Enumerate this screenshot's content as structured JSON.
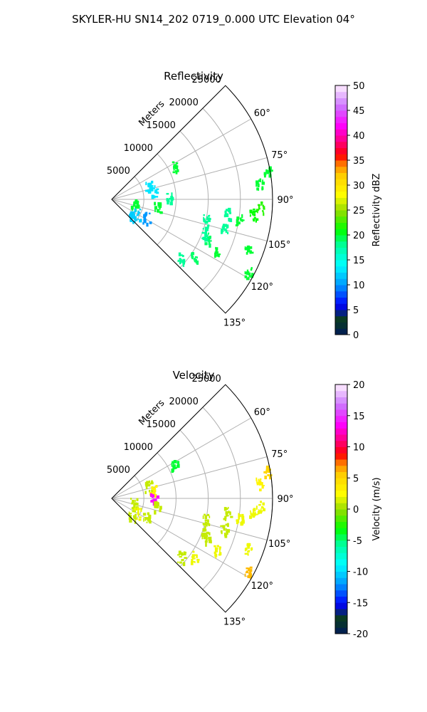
{
  "figure": {
    "suptitle": "SKYLER-HU  SN14_202  0719_0.000 UTC Elevation 04°"
  },
  "chart_data": [
    {
      "type": "polar-sector",
      "title": "Reflectivity",
      "radial_label": "Meters",
      "radial_ticks": [
        5000,
        10000,
        15000,
        20000,
        25000
      ],
      "rlim": [
        0,
        25000
      ],
      "theta_ticks": [
        "60°",
        "75°",
        "90°",
        "105°",
        "120°",
        "135°"
      ],
      "theta_tick_values": [
        60,
        75,
        90,
        105,
        120,
        135
      ],
      "thetalim": [
        45,
        135
      ],
      "grid": true,
      "colorbar": {
        "label": "Reflectivity dBZ",
        "ticks": [
          0,
          5,
          10,
          15,
          20,
          25,
          30,
          35,
          40,
          45,
          50
        ],
        "range": [
          0,
          50
        ]
      },
      "echo_regions": [
        {
          "azimuth": 80,
          "range_m": 24500,
          "value": 20
        },
        {
          "azimuth": 84,
          "range_m": 23000,
          "value": 20
        },
        {
          "azimuth": 93,
          "range_m": 23000,
          "value": 22
        },
        {
          "azimuth": 96,
          "range_m": 22000,
          "value": 21
        },
        {
          "azimuth": 99,
          "range_m": 20000,
          "value": 20
        },
        {
          "azimuth": 97,
          "range_m": 18000,
          "value": 18
        },
        {
          "azimuth": 110,
          "range_m": 22500,
          "value": 20
        },
        {
          "azimuth": 118,
          "range_m": 24000,
          "value": 20
        },
        {
          "azimuth": 116,
          "range_m": 18000,
          "value": 20
        },
        {
          "azimuth": 112,
          "range_m": 16000,
          "value": 19
        },
        {
          "azimuth": 110,
          "range_m": 15000,
          "value": 18
        },
        {
          "azimuth": 105,
          "range_m": 18000,
          "value": 18
        },
        {
          "azimuth": 102,
          "range_m": 15000,
          "value": 18
        },
        {
          "azimuth": 125,
          "range_m": 15500,
          "value": 19
        },
        {
          "azimuth": 130,
          "range_m": 14000,
          "value": 18
        },
        {
          "azimuth": 62,
          "range_m": 11000,
          "value": 20
        },
        {
          "azimuth": 70,
          "range_m": 6000,
          "value": 13
        },
        {
          "azimuth": 78,
          "range_m": 6500,
          "value": 13
        },
        {
          "azimuth": 88,
          "range_m": 9000,
          "value": 18
        },
        {
          "azimuth": 102,
          "range_m": 3500,
          "value": 20
        },
        {
          "azimuth": 98,
          "range_m": 7000,
          "value": 20
        },
        {
          "azimuth": 120,
          "range_m": 4500,
          "value": 12
        },
        {
          "azimuth": 118,
          "range_m": 6000,
          "value": 10
        },
        {
          "azimuth": 130,
          "range_m": 4000,
          "value": 12
        }
      ]
    },
    {
      "type": "polar-sector",
      "title": "Velocity",
      "radial_label": "Meters",
      "radial_ticks": [
        5000,
        10000,
        15000,
        20000,
        25000
      ],
      "rlim": [
        0,
        25000
      ],
      "theta_ticks": [
        "60°",
        "75°",
        "90°",
        "105°",
        "120°",
        "135°"
      ],
      "theta_tick_values": [
        60,
        75,
        90,
        105,
        120,
        135
      ],
      "thetalim": [
        45,
        135
      ],
      "grid": true,
      "colorbar": {
        "label": "Velocity (m/s)",
        "ticks": [
          -20,
          -15,
          -10,
          -5,
          0,
          5,
          10,
          15,
          20
        ],
        "range": [
          -20,
          20
        ]
      },
      "echo_regions": [
        {
          "azimuth": 80,
          "range_m": 24500,
          "value": 5
        },
        {
          "azimuth": 84,
          "range_m": 23000,
          "value": 3
        },
        {
          "azimuth": 93,
          "range_m": 23000,
          "value": 2
        },
        {
          "azimuth": 96,
          "range_m": 22000,
          "value": 2
        },
        {
          "azimuth": 99,
          "range_m": 20000,
          "value": 2
        },
        {
          "azimuth": 97,
          "range_m": 18000,
          "value": 1
        },
        {
          "azimuth": 110,
          "range_m": 22500,
          "value": 2
        },
        {
          "azimuth": 118,
          "range_m": 24000,
          "value": 6
        },
        {
          "azimuth": 116,
          "range_m": 18000,
          "value": 2
        },
        {
          "azimuth": 112,
          "range_m": 16000,
          "value": 1
        },
        {
          "azimuth": 110,
          "range_m": 15000,
          "value": 1
        },
        {
          "azimuth": 105,
          "range_m": 18000,
          "value": 1
        },
        {
          "azimuth": 102,
          "range_m": 15000,
          "value": 1
        },
        {
          "azimuth": 125,
          "range_m": 15500,
          "value": 2
        },
        {
          "azimuth": 130,
          "range_m": 14000,
          "value": 1
        },
        {
          "azimuth": 62,
          "range_m": 11000,
          "value": -4
        },
        {
          "azimuth": 70,
          "range_m": 6000,
          "value": 1
        },
        {
          "azimuth": 78,
          "range_m": 6500,
          "value": 3
        },
        {
          "azimuth": 88,
          "range_m": 6500,
          "value": 14
        },
        {
          "azimuth": 102,
          "range_m": 3500,
          "value": 1
        },
        {
          "azimuth": 98,
          "range_m": 7000,
          "value": 1
        },
        {
          "azimuth": 120,
          "range_m": 4500,
          "value": 2
        },
        {
          "azimuth": 118,
          "range_m": 6000,
          "value": 1
        },
        {
          "azimuth": 130,
          "range_m": 4000,
          "value": 1
        }
      ]
    }
  ]
}
